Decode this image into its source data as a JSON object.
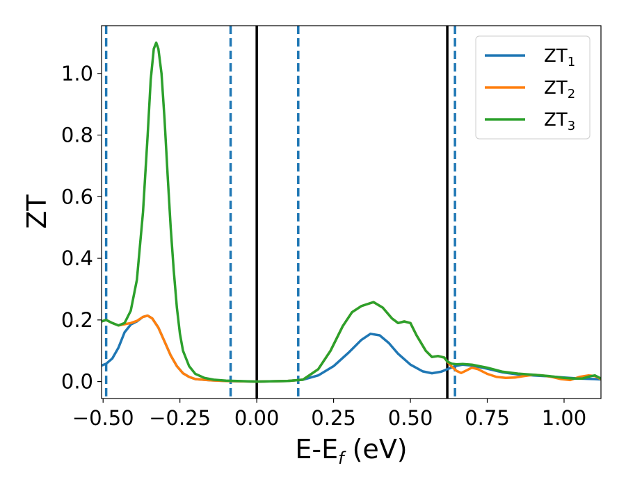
{
  "chart_data": {
    "type": "line",
    "title": "",
    "xlabel_main": "E-E",
    "xlabel_sub": "f",
    "xlabel_unit": " (eV)",
    "ylabel": "ZT",
    "xlim": [
      -0.505,
      1.12
    ],
    "ylim": [
      -0.055,
      1.155
    ],
    "x_ticks": [
      -0.5,
      -0.25,
      0.0,
      0.25,
      0.5,
      0.75,
      1.0
    ],
    "x_tick_labels": [
      "−0.50",
      "−0.25",
      "0.00",
      "0.25",
      "0.50",
      "0.75",
      "1.00"
    ],
    "y_ticks": [
      0.0,
      0.2,
      0.4,
      0.6,
      0.8,
      1.0
    ],
    "y_tick_labels": [
      "0.0",
      "0.2",
      "0.4",
      "0.6",
      "0.8",
      "1.0"
    ],
    "grid": false,
    "legend_position": "top-right",
    "vlines_solid": [
      0.0,
      0.62
    ],
    "vlines_dashed": [
      -0.49,
      -0.085,
      0.135,
      0.645
    ],
    "colors": {
      "ZT1": "#1f77b4",
      "ZT2": "#ff7f0e",
      "ZT3": "#2ca02c",
      "solid_line": "#000000",
      "dashed_line": "#1f77b4"
    },
    "series": [
      {
        "name": "ZT",
        "sub": "1",
        "color": "#1f77b4",
        "points": [
          [
            -0.505,
            0.052
          ],
          [
            -0.49,
            0.058
          ],
          [
            -0.47,
            0.075
          ],
          [
            -0.45,
            0.11
          ],
          [
            -0.43,
            0.16
          ],
          [
            -0.41,
            0.185
          ],
          [
            -0.39,
            0.195
          ],
          [
            -0.37,
            0.21
          ],
          [
            -0.355,
            0.214
          ],
          [
            -0.34,
            0.205
          ],
          [
            -0.32,
            0.175
          ],
          [
            -0.3,
            0.13
          ],
          [
            -0.28,
            0.085
          ],
          [
            -0.26,
            0.05
          ],
          [
            -0.24,
            0.027
          ],
          [
            -0.22,
            0.015
          ],
          [
            -0.2,
            0.008
          ],
          [
            -0.15,
            0.004
          ],
          [
            -0.1,
            0.002
          ],
          [
            0.0,
            0.0
          ],
          [
            0.1,
            0.002
          ],
          [
            0.15,
            0.006
          ],
          [
            0.2,
            0.02
          ],
          [
            0.25,
            0.05
          ],
          [
            0.3,
            0.095
          ],
          [
            0.34,
            0.135
          ],
          [
            0.37,
            0.155
          ],
          [
            0.4,
            0.15
          ],
          [
            0.43,
            0.125
          ],
          [
            0.46,
            0.09
          ],
          [
            0.5,
            0.055
          ],
          [
            0.54,
            0.033
          ],
          [
            0.57,
            0.027
          ],
          [
            0.6,
            0.032
          ],
          [
            0.62,
            0.04
          ],
          [
            0.645,
            0.05
          ],
          [
            0.67,
            0.055
          ],
          [
            0.7,
            0.052
          ],
          [
            0.75,
            0.042
          ],
          [
            0.8,
            0.03
          ],
          [
            0.85,
            0.023
          ],
          [
            0.9,
            0.02
          ],
          [
            0.95,
            0.017
          ],
          [
            1.0,
            0.013
          ],
          [
            1.05,
            0.01
          ],
          [
            1.1,
            0.008
          ],
          [
            1.12,
            0.007
          ]
        ]
      },
      {
        "name": "ZT",
        "sub": "2",
        "color": "#ff7f0e",
        "points": [
          [
            -0.505,
            0.195
          ],
          [
            -0.49,
            0.2
          ],
          [
            -0.47,
            0.19
          ],
          [
            -0.45,
            0.182
          ],
          [
            -0.43,
            0.186
          ],
          [
            -0.41,
            0.19
          ],
          [
            -0.39,
            0.197
          ],
          [
            -0.37,
            0.21
          ],
          [
            -0.355,
            0.214
          ],
          [
            -0.34,
            0.205
          ],
          [
            -0.32,
            0.175
          ],
          [
            -0.3,
            0.13
          ],
          [
            -0.28,
            0.085
          ],
          [
            -0.26,
            0.05
          ],
          [
            -0.24,
            0.027
          ],
          [
            -0.22,
            0.015
          ],
          [
            -0.2,
            0.008
          ],
          [
            -0.15,
            0.004
          ],
          [
            -0.1,
            0.002
          ],
          [
            0.0,
            0.0
          ],
          [
            0.1,
            0.002
          ],
          [
            0.15,
            0.006
          ],
          [
            0.2,
            0.04
          ],
          [
            0.24,
            0.1
          ],
          [
            0.28,
            0.18
          ],
          [
            0.31,
            0.225
          ],
          [
            0.34,
            0.245
          ],
          [
            0.38,
            0.258
          ],
          [
            0.41,
            0.24
          ],
          [
            0.44,
            0.205
          ],
          [
            0.46,
            0.19
          ],
          [
            0.48,
            0.195
          ],
          [
            0.5,
            0.19
          ],
          [
            0.52,
            0.15
          ],
          [
            0.55,
            0.1
          ],
          [
            0.57,
            0.08
          ],
          [
            0.59,
            0.083
          ],
          [
            0.61,
            0.078
          ],
          [
            0.62,
            0.065
          ],
          [
            0.635,
            0.048
          ],
          [
            0.65,
            0.035
          ],
          [
            0.665,
            0.028
          ],
          [
            0.68,
            0.035
          ],
          [
            0.7,
            0.045
          ],
          [
            0.72,
            0.04
          ],
          [
            0.75,
            0.025
          ],
          [
            0.78,
            0.015
          ],
          [
            0.81,
            0.012
          ],
          [
            0.84,
            0.013
          ],
          [
            0.87,
            0.018
          ],
          [
            0.9,
            0.022
          ],
          [
            0.93,
            0.02
          ],
          [
            0.96,
            0.015
          ],
          [
            0.99,
            0.008
          ],
          [
            1.02,
            0.005
          ],
          [
            1.05,
            0.015
          ],
          [
            1.08,
            0.02
          ],
          [
            1.1,
            0.018
          ],
          [
            1.12,
            0.008
          ]
        ]
      },
      {
        "name": "ZT",
        "sub": "3",
        "color": "#2ca02c",
        "points": [
          [
            -0.505,
            0.195
          ],
          [
            -0.49,
            0.2
          ],
          [
            -0.47,
            0.19
          ],
          [
            -0.45,
            0.182
          ],
          [
            -0.43,
            0.19
          ],
          [
            -0.41,
            0.23
          ],
          [
            -0.39,
            0.33
          ],
          [
            -0.37,
            0.55
          ],
          [
            -0.355,
            0.8
          ],
          [
            -0.345,
            0.98
          ],
          [
            -0.335,
            1.08
          ],
          [
            -0.327,
            1.1
          ],
          [
            -0.32,
            1.08
          ],
          [
            -0.31,
            1.0
          ],
          [
            -0.3,
            0.85
          ],
          [
            -0.29,
            0.67
          ],
          [
            -0.28,
            0.5
          ],
          [
            -0.27,
            0.36
          ],
          [
            -0.26,
            0.24
          ],
          [
            -0.25,
            0.155
          ],
          [
            -0.24,
            0.1
          ],
          [
            -0.22,
            0.05
          ],
          [
            -0.2,
            0.025
          ],
          [
            -0.17,
            0.012
          ],
          [
            -0.14,
            0.006
          ],
          [
            -0.1,
            0.003
          ],
          [
            0.0,
            0.0
          ],
          [
            0.1,
            0.002
          ],
          [
            0.15,
            0.006
          ],
          [
            0.2,
            0.04
          ],
          [
            0.24,
            0.1
          ],
          [
            0.28,
            0.18
          ],
          [
            0.31,
            0.225
          ],
          [
            0.34,
            0.245
          ],
          [
            0.38,
            0.258
          ],
          [
            0.41,
            0.24
          ],
          [
            0.44,
            0.205
          ],
          [
            0.46,
            0.19
          ],
          [
            0.48,
            0.195
          ],
          [
            0.5,
            0.19
          ],
          [
            0.52,
            0.15
          ],
          [
            0.55,
            0.1
          ],
          [
            0.57,
            0.08
          ],
          [
            0.59,
            0.083
          ],
          [
            0.61,
            0.078
          ],
          [
            0.62,
            0.065
          ],
          [
            0.635,
            0.058
          ],
          [
            0.65,
            0.056
          ],
          [
            0.67,
            0.057
          ],
          [
            0.7,
            0.055
          ],
          [
            0.75,
            0.045
          ],
          [
            0.8,
            0.032
          ],
          [
            0.85,
            0.026
          ],
          [
            0.9,
            0.022
          ],
          [
            0.95,
            0.018
          ],
          [
            1.0,
            0.012
          ],
          [
            1.03,
            0.01
          ],
          [
            1.06,
            0.01
          ],
          [
            1.08,
            0.016
          ],
          [
            1.1,
            0.02
          ],
          [
            1.12,
            0.01
          ]
        ]
      }
    ]
  }
}
